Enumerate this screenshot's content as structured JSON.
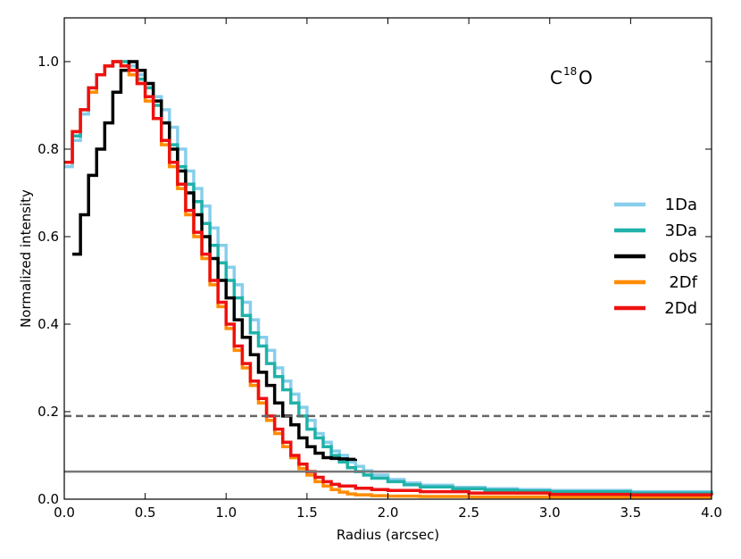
{
  "chart_data": {
    "type": "line",
    "title": "",
    "xlabel": "Radius (arcsec)",
    "ylabel": "Normalized intensity",
    "xlim": [
      0,
      4
    ],
    "ylim": [
      0,
      1.1
    ],
    "xticks": [
      0.0,
      0.5,
      1.0,
      1.5,
      2.0,
      2.5,
      3.0,
      3.5,
      4.0
    ],
    "xtick_labels": [
      "0.0",
      "0.5",
      "1.0",
      "1.5",
      "2.0",
      "2.5",
      "3.0",
      "3.5",
      "4.0"
    ],
    "yticks": [
      0.0,
      0.2,
      0.4,
      0.6,
      0.8,
      1.0
    ],
    "ytick_labels": [
      "0.0",
      "0.2",
      "0.4",
      "0.6",
      "0.8",
      "1.0"
    ],
    "grid": false,
    "legend_position": "center-right",
    "annotation": {
      "main": "C",
      "sup": "18",
      "tail": "O"
    },
    "reference_lines": [
      {
        "y": 0.19,
        "style": "dashed",
        "color": "#666666"
      },
      {
        "y": 0.063,
        "style": "solid",
        "color": "#777777"
      }
    ],
    "series": [
      {
        "name": "1Da",
        "color": "#87CEEB",
        "step": true,
        "x": [
          0.0,
          0.05,
          0.1,
          0.15,
          0.2,
          0.25,
          0.3,
          0.35,
          0.4,
          0.45,
          0.5,
          0.55,
          0.6,
          0.65,
          0.7,
          0.75,
          0.8,
          0.85,
          0.9,
          0.95,
          1.0,
          1.05,
          1.1,
          1.15,
          1.2,
          1.25,
          1.3,
          1.35,
          1.4,
          1.45,
          1.5,
          1.55,
          1.6,
          1.65,
          1.7,
          1.75,
          1.8,
          1.85,
          1.9,
          2.0,
          2.1,
          2.2,
          2.4,
          2.6,
          2.8,
          3.0,
          3.5,
          4.0
        ],
        "y": [
          0.76,
          0.82,
          0.88,
          0.93,
          0.97,
          0.99,
          1.0,
          1.0,
          0.99,
          0.97,
          0.95,
          0.92,
          0.89,
          0.85,
          0.8,
          0.75,
          0.71,
          0.67,
          0.62,
          0.58,
          0.53,
          0.49,
          0.45,
          0.41,
          0.37,
          0.34,
          0.3,
          0.27,
          0.24,
          0.21,
          0.18,
          0.15,
          0.13,
          0.11,
          0.1,
          0.085,
          0.075,
          0.065,
          0.055,
          0.045,
          0.037,
          0.032,
          0.027,
          0.024,
          0.022,
          0.02,
          0.017,
          0.015
        ]
      },
      {
        "name": "3Da",
        "color": "#20B2AA",
        "step": true,
        "x": [
          0.0,
          0.05,
          0.1,
          0.15,
          0.2,
          0.25,
          0.3,
          0.35,
          0.4,
          0.45,
          0.5,
          0.55,
          0.6,
          0.65,
          0.7,
          0.75,
          0.8,
          0.85,
          0.9,
          0.95,
          1.0,
          1.05,
          1.1,
          1.15,
          1.2,
          1.25,
          1.3,
          1.35,
          1.4,
          1.45,
          1.5,
          1.55,
          1.6,
          1.65,
          1.7,
          1.75,
          1.8,
          1.85,
          1.9,
          2.0,
          2.1,
          2.2,
          2.4,
          2.6,
          2.8,
          3.0,
          3.5,
          4.0
        ],
        "y": [
          0.77,
          0.83,
          0.89,
          0.94,
          0.97,
          0.99,
          1.0,
          1.0,
          0.98,
          0.96,
          0.94,
          0.9,
          0.86,
          0.81,
          0.76,
          0.72,
          0.68,
          0.63,
          0.58,
          0.54,
          0.5,
          0.46,
          0.42,
          0.38,
          0.35,
          0.31,
          0.28,
          0.25,
          0.22,
          0.19,
          0.16,
          0.14,
          0.12,
          0.1,
          0.085,
          0.072,
          0.063,
          0.055,
          0.048,
          0.04,
          0.033,
          0.028,
          0.024,
          0.021,
          0.019,
          0.017,
          0.014,
          0.012
        ]
      },
      {
        "name": "obs",
        "color": "#000000",
        "step": true,
        "x": [
          0.05,
          0.1,
          0.15,
          0.2,
          0.25,
          0.3,
          0.35,
          0.4,
          0.45,
          0.5,
          0.55,
          0.6,
          0.65,
          0.7,
          0.75,
          0.8,
          0.85,
          0.9,
          0.95,
          1.0,
          1.05,
          1.1,
          1.15,
          1.2,
          1.25,
          1.3,
          1.35,
          1.4,
          1.45,
          1.5,
          1.55,
          1.6,
          1.65,
          1.7,
          1.75,
          1.8
        ],
        "y": [
          0.56,
          0.65,
          0.74,
          0.8,
          0.86,
          0.93,
          0.98,
          1.0,
          0.98,
          0.95,
          0.91,
          0.86,
          0.8,
          0.75,
          0.7,
          0.65,
          0.6,
          0.55,
          0.5,
          0.46,
          0.41,
          0.37,
          0.33,
          0.29,
          0.26,
          0.22,
          0.19,
          0.17,
          0.14,
          0.12,
          0.105,
          0.095,
          0.093,
          0.092,
          0.091,
          0.092
        ]
      },
      {
        "name": "2Df",
        "color": "#FF8C00",
        "step": true,
        "x": [
          0.0,
          0.05,
          0.1,
          0.15,
          0.2,
          0.25,
          0.3,
          0.35,
          0.4,
          0.45,
          0.5,
          0.55,
          0.6,
          0.65,
          0.7,
          0.75,
          0.8,
          0.85,
          0.9,
          0.95,
          1.0,
          1.05,
          1.1,
          1.15,
          1.2,
          1.25,
          1.3,
          1.35,
          1.4,
          1.45,
          1.5,
          1.55,
          1.6,
          1.65,
          1.7,
          1.75,
          1.8,
          1.9,
          2.0,
          2.2,
          2.5,
          3.0,
          3.5,
          4.0
        ],
        "y": [
          0.77,
          0.84,
          0.89,
          0.93,
          0.97,
          0.99,
          1.0,
          0.99,
          0.97,
          0.95,
          0.91,
          0.87,
          0.81,
          0.76,
          0.71,
          0.65,
          0.6,
          0.55,
          0.49,
          0.44,
          0.39,
          0.34,
          0.3,
          0.26,
          0.22,
          0.18,
          0.15,
          0.12,
          0.095,
          0.07,
          0.055,
          0.04,
          0.03,
          0.022,
          0.016,
          0.012,
          0.01,
          0.008,
          0.007,
          0.006,
          0.005,
          0.004,
          0.004,
          0.004
        ]
      },
      {
        "name": "2Dd",
        "color": "#EE1111",
        "step": true,
        "x": [
          0.0,
          0.05,
          0.1,
          0.15,
          0.2,
          0.25,
          0.3,
          0.35,
          0.4,
          0.45,
          0.5,
          0.55,
          0.6,
          0.65,
          0.7,
          0.75,
          0.8,
          0.85,
          0.9,
          0.95,
          1.0,
          1.05,
          1.1,
          1.15,
          1.2,
          1.25,
          1.3,
          1.35,
          1.4,
          1.45,
          1.5,
          1.55,
          1.6,
          1.65,
          1.7,
          1.8,
          1.9,
          2.0,
          2.2,
          2.5,
          3.0,
          3.5,
          4.0
        ],
        "y": [
          0.77,
          0.84,
          0.89,
          0.94,
          0.97,
          0.99,
          1.0,
          0.99,
          0.98,
          0.95,
          0.92,
          0.87,
          0.82,
          0.77,
          0.72,
          0.66,
          0.61,
          0.56,
          0.5,
          0.45,
          0.4,
          0.35,
          0.31,
          0.27,
          0.23,
          0.19,
          0.16,
          0.13,
          0.1,
          0.08,
          0.063,
          0.05,
          0.04,
          0.034,
          0.03,
          0.025,
          0.022,
          0.02,
          0.017,
          0.014,
          0.011,
          0.01,
          0.009
        ]
      }
    ]
  }
}
